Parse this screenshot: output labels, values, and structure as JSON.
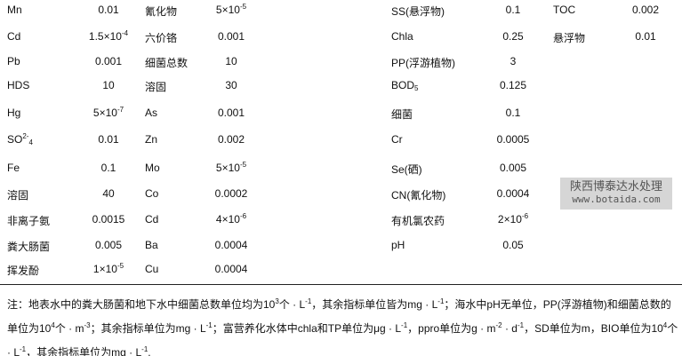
{
  "rows": [
    {
      "n1": "Mn",
      "v1": {
        "t": "0.01"
      },
      "n2": "氰化物",
      "v2": {
        "t": "5×10",
        "s": "-5"
      },
      "n3": "SS(悬浮物)",
      "v3": {
        "t": "0.1"
      },
      "n4": "TOC",
      "v4": {
        "t": "0.002"
      }
    },
    {
      "n1": "Cd",
      "v1": {
        "t": "1.5×10",
        "s": "-4"
      },
      "n2": "六价铬",
      "v2": {
        "t": "0.001"
      },
      "n3": "Chla",
      "v3": {
        "t": "0.25"
      },
      "n4": "悬浮物",
      "v4": {
        "t": "0.01"
      }
    },
    {
      "n1": "Pb",
      "v1": {
        "t": "0.001"
      },
      "n2": "细菌总数",
      "v2": {
        "t": "10"
      },
      "n3": "PP(浮游植物)",
      "v3": {
        "t": "3"
      }
    },
    {
      "n1": "HDS",
      "v1": {
        "t": "10"
      },
      "n2": "溶固",
      "v2": {
        "t": "30"
      },
      "n3": "BOD",
      "n3sub": "5",
      "v3": {
        "t": "0.125"
      }
    },
    {
      "n1": "Hg",
      "v1": {
        "t": "5×10",
        "s": "-7"
      },
      "n2": "As",
      "v2": {
        "t": "0.001"
      },
      "n3": "细菌",
      "v3": {
        "t": "0.1"
      }
    },
    {
      "n1": "SO",
      "n1sup": "2-",
      "n1sub": "4",
      "v1": {
        "t": "0.01"
      },
      "n2": "Zn",
      "v2": {
        "t": "0.002"
      },
      "n3": "Cr",
      "v3": {
        "t": "0.0005"
      }
    },
    {
      "n1": "Fe",
      "v1": {
        "t": "0.1"
      },
      "n2": "Mo",
      "v2": {
        "t": "5×10",
        "s": "-5"
      },
      "n3": "Se(硒)",
      "v3": {
        "t": "0.005"
      }
    },
    {
      "n1": "溶固",
      "v1": {
        "t": "40"
      },
      "n2": "Co",
      "v2": {
        "t": "0.0002"
      },
      "n3": "CN(氰化物)",
      "v3": {
        "t": "0.0004"
      }
    },
    {
      "n1": "非离子氨",
      "v1": {
        "t": "0.0015"
      },
      "n2": "Cd",
      "v2": {
        "t": "4×10",
        "s": "-6"
      },
      "n3": "有机氯农药",
      "v3": {
        "t": "2×10",
        "s": "-6"
      }
    },
    {
      "n1": "粪大肠菌",
      "v1": {
        "t": "0.005"
      },
      "n2": "Ba",
      "v2": {
        "t": "0.0004"
      },
      "n3": "pH",
      "v3": {
        "t": "0.05"
      }
    },
    {
      "n1": "挥发酚",
      "v1": {
        "t": "1×10",
        "s": "-5"
      },
      "n2": "Cu",
      "v2": {
        "t": "0.0004"
      }
    }
  ],
  "note": [
    {
      "t": "注：地表水中的粪大肠菌和地下水中细菌总数单位均为10"
    },
    {
      "s": "3"
    },
    {
      "t": "个 · L"
    },
    {
      "s": "-1"
    },
    {
      "t": "，其余指标单位皆为mg · L"
    },
    {
      "s": "-1"
    },
    {
      "t": "；海水中pH无单位，PP(浮游植物)和细菌总数的单位为10"
    },
    {
      "s": "4"
    },
    {
      "t": "个 · m"
    },
    {
      "s": "-3"
    },
    {
      "t": "；其余指标单位为mg · L"
    },
    {
      "s": "-1"
    },
    {
      "t": "；富营养化水体中chla和TP单位为μg · L"
    },
    {
      "s": "-1"
    },
    {
      "t": "，ppro单位为g · m"
    },
    {
      "s": "-2"
    },
    {
      "t": " · d"
    },
    {
      "s": "-1"
    },
    {
      "t": "，SD单位为m，BIO单位为10"
    },
    {
      "s": "4"
    },
    {
      "t": "个 · L"
    },
    {
      "s": "-1"
    },
    {
      "t": "，其余指标单位为mg · L"
    },
    {
      "s": "-1"
    },
    {
      "t": "."
    }
  ],
  "watermark": {
    "line1": "陕西博泰达水处理",
    "line2": "www.botaida.com"
  }
}
